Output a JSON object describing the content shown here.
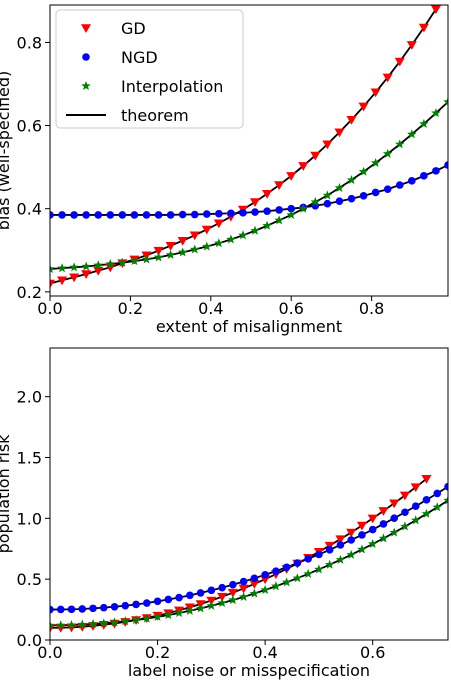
{
  "chart_data": [
    {
      "type": "scatter",
      "xlabel": "extent of misalignment",
      "ylabel": "bias (well-specified)",
      "xlim": [
        0.0,
        0.99
      ],
      "ylim": [
        0.19,
        0.89
      ],
      "xticks": [
        0.0,
        0.2,
        0.4,
        0.6,
        0.8
      ],
      "xtick_labels": [
        "0.0",
        "0.2",
        "0.4",
        "0.6",
        "0.8"
      ],
      "yticks": [
        0.2,
        0.4,
        0.6,
        0.8
      ],
      "ytick_labels": [
        "0.2",
        "0.4",
        "0.6",
        "0.8"
      ],
      "legend_position": "top-left",
      "legend_entries": [
        "GD",
        "NGD",
        "Interpolation",
        "theorem"
      ],
      "series": [
        {
          "name": "GD",
          "marker": "triangle-down",
          "color": "#ff0000",
          "x": [
            0.0,
            0.03,
            0.06,
            0.09,
            0.12,
            0.15,
            0.18,
            0.21,
            0.24,
            0.27,
            0.3,
            0.33,
            0.36,
            0.39,
            0.42,
            0.45,
            0.48,
            0.51,
            0.54,
            0.57,
            0.6,
            0.63,
            0.66,
            0.69,
            0.72,
            0.75,
            0.78,
            0.81,
            0.84,
            0.87,
            0.9,
            0.93,
            0.96,
            0.99
          ],
          "y": [
            0.22,
            0.228,
            0.235,
            0.243,
            0.251,
            0.259,
            0.269,
            0.278,
            0.288,
            0.299,
            0.311,
            0.323,
            0.336,
            0.35,
            0.365,
            0.381,
            0.398,
            0.416,
            0.436,
            0.457,
            0.479,
            0.503,
            0.528,
            0.555,
            0.584,
            0.614,
            0.646,
            0.68,
            0.716,
            0.754,
            0.794,
            0.836,
            0.88,
            0.927
          ]
        },
        {
          "name": "NGD",
          "marker": "circle",
          "color": "#0000ff",
          "x": [
            0.0,
            0.03,
            0.06,
            0.09,
            0.12,
            0.15,
            0.18,
            0.21,
            0.24,
            0.27,
            0.3,
            0.33,
            0.36,
            0.39,
            0.42,
            0.45,
            0.48,
            0.51,
            0.54,
            0.57,
            0.6,
            0.63,
            0.66,
            0.69,
            0.72,
            0.75,
            0.78,
            0.81,
            0.84,
            0.87,
            0.9,
            0.93,
            0.96,
            0.99
          ],
          "y": [
            0.385,
            0.385,
            0.385,
            0.385,
            0.385,
            0.385,
            0.385,
            0.385,
            0.385,
            0.385,
            0.385,
            0.386,
            0.386,
            0.387,
            0.388,
            0.389,
            0.39,
            0.392,
            0.394,
            0.397,
            0.4,
            0.403,
            0.407,
            0.412,
            0.418,
            0.424,
            0.431,
            0.439,
            0.447,
            0.457,
            0.467,
            0.479,
            0.491,
            0.505
          ]
        },
        {
          "name": "Interpolation",
          "marker": "star",
          "color": "#008000",
          "x": [
            0.0,
            0.03,
            0.06,
            0.09,
            0.12,
            0.15,
            0.18,
            0.21,
            0.24,
            0.27,
            0.3,
            0.33,
            0.36,
            0.39,
            0.42,
            0.45,
            0.48,
            0.51,
            0.54,
            0.57,
            0.6,
            0.63,
            0.66,
            0.69,
            0.72,
            0.75,
            0.78,
            0.81,
            0.84,
            0.87,
            0.9,
            0.93,
            0.96,
            0.99
          ],
          "y": [
            0.255,
            0.257,
            0.259,
            0.261,
            0.264,
            0.267,
            0.27,
            0.274,
            0.278,
            0.283,
            0.289,
            0.295,
            0.302,
            0.309,
            0.317,
            0.326,
            0.336,
            0.347,
            0.359,
            0.372,
            0.385,
            0.4,
            0.416,
            0.432,
            0.45,
            0.469,
            0.489,
            0.51,
            0.532,
            0.555,
            0.579,
            0.604,
            0.63,
            0.657
          ]
        }
      ]
    },
    {
      "type": "scatter",
      "xlabel": "label noise or misspecification",
      "ylabel": "population risk",
      "xlim": [
        0.0,
        0.74
      ],
      "ylim": [
        0.0,
        2.4
      ],
      "xticks": [
        0.0,
        0.2,
        0.4,
        0.6
      ],
      "xtick_labels": [
        "0.0",
        "0.2",
        "0.4",
        "0.6"
      ],
      "yticks": [
        0.0,
        0.5,
        1.0,
        1.5,
        2.0
      ],
      "ytick_labels": [
        "0.0",
        "0.5",
        "1.0",
        "1.5",
        "2.0"
      ],
      "series": [
        {
          "name": "GD",
          "marker": "triangle-down",
          "color": "#ff0000",
          "x": [
            0.0,
            0.02,
            0.04,
            0.06,
            0.08,
            0.1,
            0.12,
            0.14,
            0.16,
            0.18,
            0.2,
            0.22,
            0.24,
            0.26,
            0.28,
            0.3,
            0.32,
            0.34,
            0.36,
            0.38,
            0.4,
            0.42,
            0.44,
            0.46,
            0.48,
            0.5,
            0.52,
            0.54,
            0.56,
            0.58,
            0.6,
            0.62,
            0.64,
            0.66,
            0.68,
            0.7
          ],
          "y": [
            0.1,
            0.101,
            0.104,
            0.109,
            0.116,
            0.125,
            0.136,
            0.149,
            0.164,
            0.181,
            0.2,
            0.221,
            0.244,
            0.269,
            0.296,
            0.325,
            0.356,
            0.389,
            0.424,
            0.461,
            0.5,
            0.541,
            0.584,
            0.629,
            0.676,
            0.725,
            0.776,
            0.829,
            0.884,
            0.941,
            1.0,
            1.061,
            1.124,
            1.189,
            1.256,
            1.325
          ]
        },
        {
          "name": "NGD",
          "marker": "circle",
          "color": "#0000ff",
          "x": [
            0.0,
            0.02,
            0.04,
            0.06,
            0.08,
            0.1,
            0.12,
            0.14,
            0.16,
            0.18,
            0.2,
            0.22,
            0.24,
            0.26,
            0.28,
            0.3,
            0.32,
            0.34,
            0.36,
            0.38,
            0.4,
            0.42,
            0.44,
            0.46,
            0.48,
            0.5,
            0.52,
            0.54,
            0.56,
            0.58,
            0.6,
            0.62,
            0.64,
            0.66,
            0.68,
            0.7,
            0.72,
            0.74
          ],
          "y": [
            0.25,
            0.251,
            0.252,
            0.255,
            0.26,
            0.266,
            0.273,
            0.282,
            0.292,
            0.304,
            0.318,
            0.333,
            0.349,
            0.367,
            0.387,
            0.408,
            0.43,
            0.455,
            0.48,
            0.507,
            0.536,
            0.566,
            0.598,
            0.632,
            0.667,
            0.703,
            0.741,
            0.781,
            0.822,
            0.864,
            0.908,
            0.954,
            1.001,
            1.05,
            1.1,
            1.152,
            1.205,
            1.26
          ]
        },
        {
          "name": "Interpolation",
          "marker": "star",
          "color": "#008000",
          "x": [
            0.0,
            0.02,
            0.04,
            0.06,
            0.08,
            0.1,
            0.12,
            0.14,
            0.16,
            0.18,
            0.2,
            0.22,
            0.24,
            0.26,
            0.28,
            0.3,
            0.32,
            0.34,
            0.36,
            0.38,
            0.4,
            0.42,
            0.44,
            0.46,
            0.48,
            0.5,
            0.52,
            0.54,
            0.56,
            0.58,
            0.6,
            0.62,
            0.64,
            0.66,
            0.68,
            0.7,
            0.72,
            0.74
          ],
          "y": [
            0.12,
            0.121,
            0.123,
            0.127,
            0.131,
            0.137,
            0.145,
            0.154,
            0.164,
            0.176,
            0.19,
            0.205,
            0.222,
            0.24,
            0.26,
            0.281,
            0.304,
            0.328,
            0.354,
            0.382,
            0.411,
            0.442,
            0.474,
            0.508,
            0.543,
            0.58,
            0.619,
            0.659,
            0.7,
            0.744,
            0.789,
            0.835,
            0.883,
            0.933,
            0.984,
            1.037,
            1.091,
            1.147
          ]
        }
      ]
    }
  ]
}
